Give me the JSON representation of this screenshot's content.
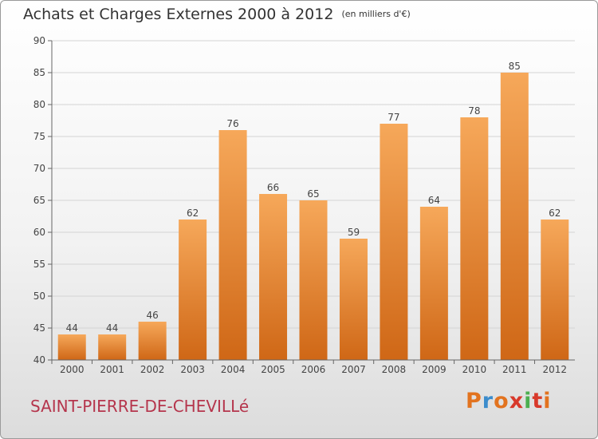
{
  "header": {
    "title": "Achats et Charges Externes 2000 à 2012",
    "unit": "(en milliers d'€)"
  },
  "footer": {
    "commune": "SAINT-PIERRE-DE-CHEVILLé",
    "logo": "Proxiti",
    "logo_colors": [
      "#e2731f",
      "#3b8ccc",
      "#e2731f",
      "#d8392b",
      "#4caf50",
      "#d8392b",
      "#e2731f"
    ]
  },
  "colors": {
    "bar_top": "#f6a85a",
    "bar_bottom": "#cf6716",
    "grid": "#d4d4d4",
    "axis": "#666666"
  },
  "chart_data": {
    "type": "bar",
    "categories": [
      "2000",
      "2001",
      "2002",
      "2003",
      "2004",
      "2005",
      "2006",
      "2007",
      "2008",
      "2009",
      "2010",
      "2011",
      "2012"
    ],
    "values": [
      44,
      44,
      46,
      62,
      76,
      66,
      65,
      59,
      77,
      64,
      78,
      85,
      62
    ],
    "ylim": [
      40,
      90
    ],
    "yticks": [
      40,
      45,
      50,
      55,
      60,
      65,
      70,
      75,
      80,
      85,
      90
    ],
    "grid": true,
    "data_labels": true,
    "legend": "none"
  }
}
